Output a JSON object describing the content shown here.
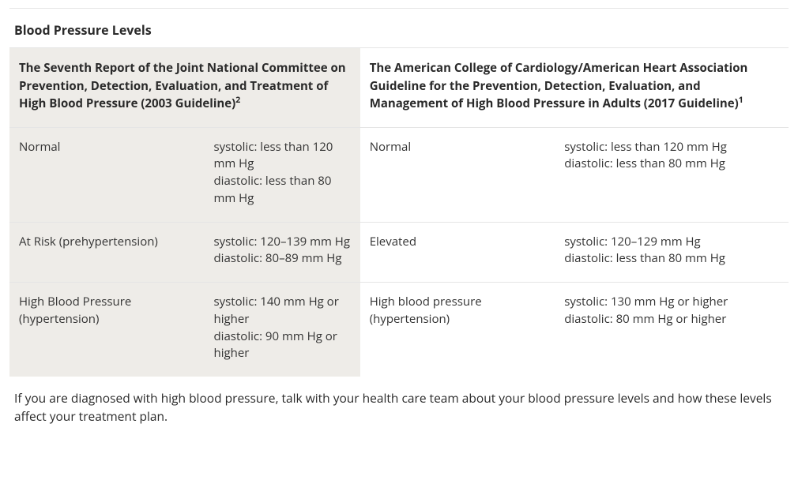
{
  "title": "Blood Pressure Levels",
  "left": {
    "header_main": "The Seventh Report of the Joint National Committee on Prevention, Detection, Evaluation, and Treatment of High Blood Pressure (2003 Guideline)",
    "header_sup": "2",
    "rows": [
      {
        "label": "Normal",
        "systolic": "systolic: less than 120 mm Hg",
        "diastolic": "diastolic: less than 80 mm Hg"
      },
      {
        "label": "At Risk (prehypertension)",
        "systolic": "systolic: 120–139 mm Hg",
        "diastolic": "diastolic: 80–89 mm Hg"
      },
      {
        "label": "High Blood Pressure (hypertension)",
        "systolic": "systolic: 140 mm Hg or higher",
        "diastolic": "diastolic: 90 mm Hg or higher"
      }
    ]
  },
  "right": {
    "header_main": "The American College of Cardiology/American Heart Association Guideline for the Prevention, Detection, Evaluation, and Management of High Blood Pressure in Adults (2017 Guideline)",
    "header_sup": "1",
    "rows": [
      {
        "label": "Normal",
        "systolic": "systolic: less than 120 mm Hg",
        "diastolic": "diastolic: less than 80 mm Hg"
      },
      {
        "label": "Elevated",
        "systolic": "systolic: 120–129 mm Hg",
        "diastolic": "diastolic: less than 80 mm Hg"
      },
      {
        "label": "High blood pressure (hypertension)",
        "systolic": "systolic: 130 mm Hg or higher",
        "diastolic": "diastolic: 80 mm Hg or higher"
      }
    ]
  },
  "footnote": "If you are diagnosed with high blood pressure, talk with your health care team about your blood pressure levels and how these levels affect your treatment plan.",
  "style": {
    "type": "table",
    "shaded_bg": "#eeece8",
    "plain_bg": "#ffffff",
    "border_color": "#e5e5e5",
    "text_color": "#333333",
    "title_fontsize": 16,
    "header_fontsize": 15,
    "body_fontsize": 15,
    "column_widths_pct": [
      25,
      20,
      25,
      30
    ],
    "rows": 3,
    "columns": 4
  }
}
